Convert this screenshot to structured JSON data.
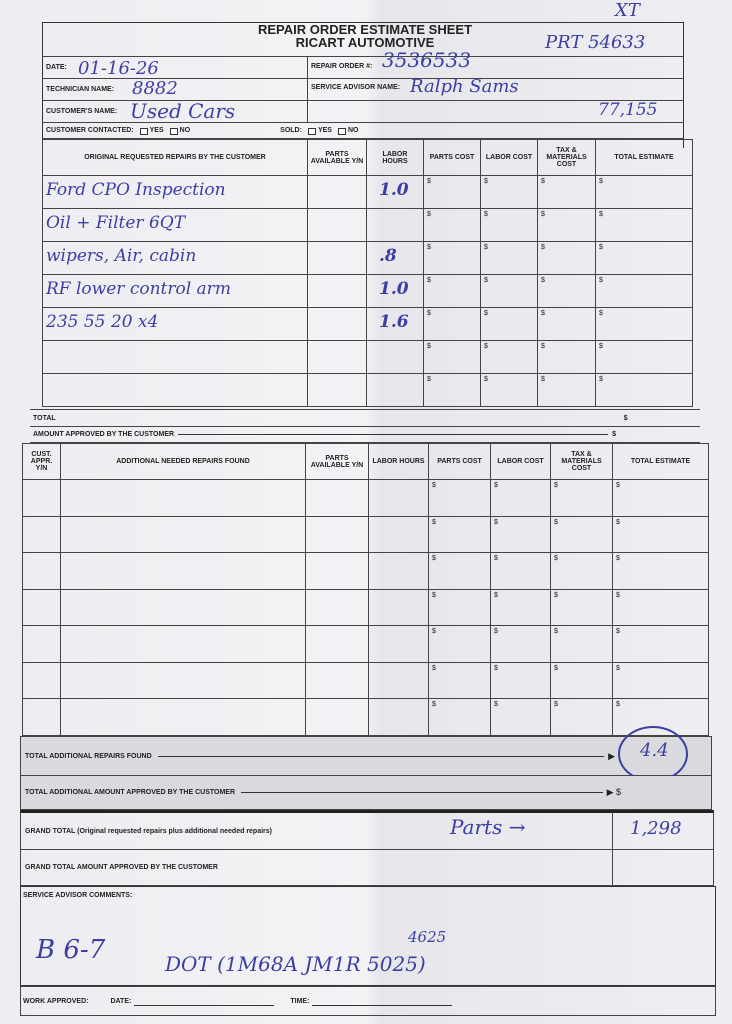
{
  "header": {
    "title": "REPAIR ORDER ESTIMATE SHEET",
    "company": "RICART AUTOMOTIVE",
    "corner_note": "XT",
    "stock_note": "PRT 54633"
  },
  "info": {
    "date_label": "DATE:",
    "date_value": "01-16-26",
    "technician_label": "TECHNICIAN NAME:",
    "technician_value": "8882",
    "customer_label": "CUSTOMER'S NAME:",
    "customer_value": "Used Cars",
    "contacted_label": "CUSTOMER CONTACTED:",
    "yes": "YES",
    "no": "NO",
    "repair_order_label": "REPAIR ORDER #:",
    "repair_order_value": "3536533",
    "advisor_label": "SERVICE ADVISOR NAME:",
    "advisor_value": "Ralph Sams",
    "mileage_value": "77,155",
    "sold_label": "SOLD:"
  },
  "table1": {
    "headers": [
      "ORIGINAL REQUESTED REPAIRS BY THE CUSTOMER",
      "PARTS AVAILABLE Y/N",
      "LABOR HOURS",
      "PARTS COST",
      "LABOR COST",
      "TAX & MATERIALS COST",
      "TOTAL ESTIMATE"
    ],
    "rows": [
      {
        "desc": "Ford CPO Inspection",
        "hours": "1.0"
      },
      {
        "desc": "Oil + Filter   6QT",
        "hours": ""
      },
      {
        "desc": "wipers, Air, cabin",
        "hours": ".8"
      },
      {
        "desc": "RF lower control arm",
        "hours": "1.0"
      },
      {
        "desc": "235 55 20 x4",
        "hours": "1.6"
      },
      {
        "desc": "",
        "hours": ""
      },
      {
        "desc": "",
        "hours": ""
      }
    ],
    "currency": "$",
    "total_label": "TOTAL",
    "approved_label": "AMOUNT APPROVED BY THE CUSTOMER"
  },
  "table2": {
    "headers": [
      "CUST. APPR. Y/N",
      "ADDITIONAL NEEDED REPAIRS FOUND",
      "PARTS AVAILABLE Y/N",
      "LABOR HOURS",
      "PARTS COST",
      "LABOR COST",
      "TAX & MATERIALS COST",
      "TOTAL ESTIMATE"
    ],
    "row_count": 7
  },
  "summary": {
    "total_additional_label": "TOTAL ADDITIONAL REPAIRS FOUND",
    "total_additional_value": "4.4",
    "total_additional_approved_label": "TOTAL ADDITIONAL AMOUNT APPROVED BY THE CUSTOMER",
    "grand_total_label": "GRAND TOTAL (Original requested repairs plus additional needed repairs)",
    "grand_total_note": "Parts →",
    "grand_total_value": "1,298",
    "grand_total_approved_label": "GRAND TOTAL AMOUNT APPROVED BY THE CUSTOMER"
  },
  "comments": {
    "label": "SERVICE ADVISOR COMMENTS:",
    "note1": "B 6-7",
    "note2": "DOT (1M68A JM1R 5025)",
    "note3": "4625"
  },
  "footer": {
    "work_approved": "WORK APPROVED:",
    "date": "DATE:",
    "time": "TIME:"
  }
}
